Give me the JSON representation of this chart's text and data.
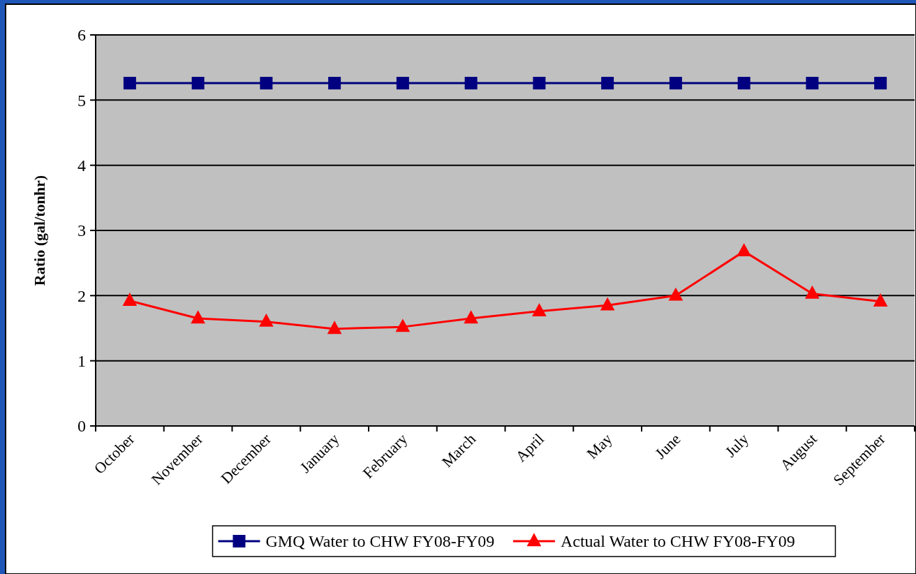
{
  "chart_data": {
    "type": "line",
    "ylabel": "Ratio (gal/tonhr)",
    "categories": [
      "October",
      "November",
      "December",
      "January",
      "February",
      "March",
      "April",
      "May",
      "June",
      "July",
      "August",
      "September"
    ],
    "series": [
      {
        "name": "GMQ Water to CHW FY08-FY09",
        "color": "#000080",
        "marker": "square",
        "values": [
          5.26,
          5.26,
          5.26,
          5.26,
          5.26,
          5.26,
          5.26,
          5.26,
          5.26,
          5.26,
          5.26,
          5.26
        ]
      },
      {
        "name": "Actual Water to CHW FY08-FY09",
        "color": "#ff0000",
        "marker": "triangle",
        "values": [
          1.92,
          1.65,
          1.6,
          1.49,
          1.52,
          1.65,
          1.76,
          1.85,
          2.0,
          2.68,
          2.03,
          1.91
        ]
      }
    ],
    "ylim": [
      0,
      6
    ],
    "yticks": [
      0,
      1,
      2,
      3,
      4,
      5,
      6
    ],
    "grid": "y",
    "legend": "bottom",
    "line_style": "solid"
  }
}
